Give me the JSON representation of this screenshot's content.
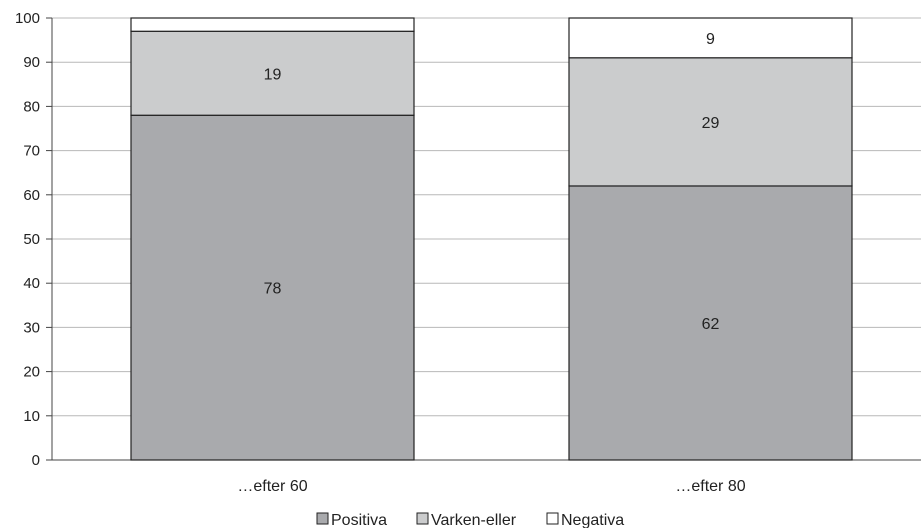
{
  "chart_data": {
    "type": "bar",
    "stacked": true,
    "title": "",
    "xlabel": "",
    "ylabel": "",
    "categories": [
      "…efter 60",
      "…efter 80"
    ],
    "series": [
      {
        "name": "Positiva",
        "values": [
          78,
          62
        ],
        "labels": [
          "78",
          "62"
        ],
        "color": "#a9aaad"
      },
      {
        "name": "Varken-eller",
        "values": [
          19,
          29
        ],
        "labels": [
          "19",
          "29"
        ],
        "color": "#cbcccd"
      },
      {
        "name": "Negativa",
        "values": [
          3,
          9
        ],
        "labels": [
          "",
          "9"
        ],
        "color": "#ffffff"
      }
    ],
    "ylim": [
      0,
      100
    ],
    "yticks": [
      0,
      10,
      20,
      30,
      40,
      50,
      60,
      70,
      80,
      90,
      100
    ],
    "grid": true,
    "legend_position": "bottom-center"
  }
}
